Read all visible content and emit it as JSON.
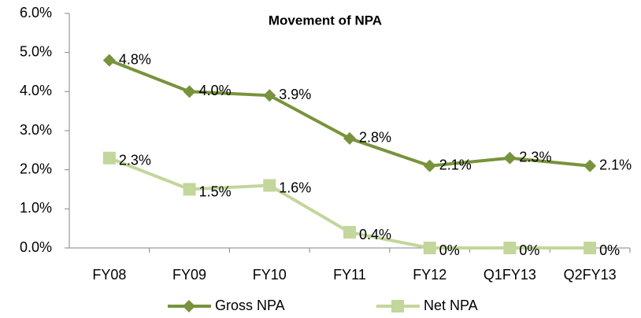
{
  "chart_data": {
    "type": "line",
    "title": "Movement of NPA",
    "categories": [
      "FY08",
      "FY09",
      "FY10",
      "FY11",
      "FY12",
      "Q1FY13",
      "Q2FY13"
    ],
    "series": [
      {
        "name": "Gross NPA",
        "color": "#77933c",
        "marker": "diamond",
        "values": [
          4.8,
          4.0,
          3.9,
          2.8,
          2.1,
          2.3,
          2.1
        ],
        "value_labels": [
          "4.8%",
          "4.0%",
          "3.9%",
          "2.8%",
          "2.1%",
          "2.3%",
          "2.1%"
        ]
      },
      {
        "name": "Net NPA",
        "color": "#c3d69b",
        "marker": "square",
        "values": [
          2.3,
          1.5,
          1.6,
          0.4,
          0,
          0,
          0
        ],
        "value_labels": [
          "2.3%",
          "1.5%",
          "1.6%",
          "0.4%",
          "0%",
          "0%",
          "0%"
        ]
      }
    ],
    "ylim": [
      0,
      6
    ],
    "yticks": [
      {
        "value": 0,
        "label": "0.0%"
      },
      {
        "value": 1,
        "label": "1.0%"
      },
      {
        "value": 2,
        "label": "2.0%"
      },
      {
        "value": 3,
        "label": "3.0%"
      },
      {
        "value": 4,
        "label": "4.0%"
      },
      {
        "value": 5,
        "label": "5.0%"
      },
      {
        "value": 6,
        "label": "6.0%"
      }
    ],
    "grid": false,
    "legend_position": "bottom"
  }
}
